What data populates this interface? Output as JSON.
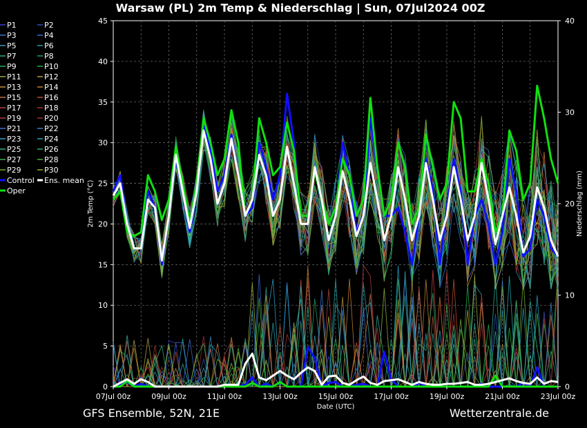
{
  "chart_data": {
    "type": "line",
    "title": "Warsaw  (PL)  2m Temp & Niederschlag | Sun, 07Jul2024 00Z",
    "ylabel_left": "2m Temp (°C)",
    "ylabel_right": "Niederschlag (mm)",
    "xlabel": "Date (UTC)",
    "ylim_left": [
      0,
      45
    ],
    "ylim_right": [
      0,
      40
    ],
    "y_ticks_left": [
      "0",
      "5",
      "10",
      "15",
      "20",
      "25",
      "30",
      "35",
      "40",
      "45"
    ],
    "y_ticks_right": [
      "0",
      "10",
      "20",
      "30",
      "40"
    ],
    "x_ticks": [
      "07Jul 00z",
      "09Jul 00z",
      "11Jul 00z",
      "13Jul 00z",
      "15Jul 00z",
      "17Jul 00z",
      "19Jul 00z",
      "21Jul 00z",
      "23Jul 00z"
    ],
    "x_days": [
      0,
      16
    ],
    "grid": true,
    "legend_position": "left",
    "legend": [
      {
        "name": "P1",
        "color": "#3b3bd6"
      },
      {
        "name": "P2",
        "color": "#2f4fb8"
      },
      {
        "name": "P3",
        "color": "#3a78c8"
      },
      {
        "name": "P4",
        "color": "#3a6ad0"
      },
      {
        "name": "P5",
        "color": "#2f9ab5"
      },
      {
        "name": "P6",
        "color": "#2aa0a8"
      },
      {
        "name": "P7",
        "color": "#2aa58a"
      },
      {
        "name": "P8",
        "color": "#20a070"
      },
      {
        "name": "P9",
        "color": "#25b050"
      },
      {
        "name": "P10",
        "color": "#20b040"
      },
      {
        "name": "P11",
        "color": "#8fb040"
      },
      {
        "name": "P12",
        "color": "#b0a040"
      },
      {
        "name": "P13",
        "color": "#c09030"
      },
      {
        "name": "P14",
        "color": "#c08030"
      },
      {
        "name": "P15",
        "color": "#c07040"
      },
      {
        "name": "P16",
        "color": "#c05030"
      },
      {
        "name": "P17",
        "color": "#c04040"
      },
      {
        "name": "P18",
        "color": "#b03030"
      },
      {
        "name": "P19",
        "color": "#b04040"
      },
      {
        "name": "P20",
        "color": "#a03030"
      },
      {
        "name": "P21",
        "color": "#3a70d0"
      },
      {
        "name": "P22",
        "color": "#3a80c0"
      },
      {
        "name": "P23",
        "color": "#2aa0c8"
      },
      {
        "name": "P24",
        "color": "#2aa8b0"
      },
      {
        "name": "P25",
        "color": "#30b090"
      },
      {
        "name": "P26",
        "color": "#30b070"
      },
      {
        "name": "P27",
        "color": "#40b050"
      },
      {
        "name": "P28",
        "color": "#50b040"
      },
      {
        "name": "P29",
        "color": "#70b030"
      },
      {
        "name": "P30",
        "color": "#a0b030"
      },
      {
        "name": "Control",
        "color": "#1010ff"
      },
      {
        "name": "Ens. mean",
        "color": "#ffffff"
      },
      {
        "name": "Oper",
        "color": "#10e010"
      }
    ],
    "series": [
      {
        "name": "Ens. mean",
        "axis": "temp",
        "color": "#ffffff",
        "x": [
          0,
          0.25,
          0.5,
          0.75,
          1,
          1.25,
          1.5,
          1.75,
          2,
          2.25,
          2.5,
          2.75,
          3,
          3.25,
          3.5,
          3.75,
          4,
          4.25,
          4.5,
          4.75,
          5,
          5.25,
          5.5,
          5.75,
          6,
          6.25,
          6.5,
          6.75,
          7,
          7.25,
          7.5,
          7.75,
          8,
          8.25,
          8.5,
          8.75,
          9,
          9.25,
          9.5,
          9.75,
          10,
          10.25,
          10.5,
          10.75,
          11,
          11.25,
          11.5,
          11.75,
          12,
          12.25,
          12.5,
          12.75,
          13,
          13.25,
          13.5,
          13.75,
          14,
          14.25,
          14.5,
          14.75,
          15,
          15.25,
          15.5,
          15.75,
          16
        ],
        "y": [
          23.5,
          25,
          20,
          17,
          17,
          23,
          22,
          15.5,
          21,
          28.5,
          24,
          19.5,
          24,
          31.5,
          28,
          22.5,
          25,
          30.5,
          26,
          21,
          23,
          28.5,
          26,
          21,
          23,
          29.5,
          25,
          20,
          20,
          27,
          23,
          18,
          21,
          26.5,
          23,
          18.5,
          21,
          27.5,
          23,
          18,
          21,
          27,
          23,
          18,
          21,
          27.5,
          23,
          18,
          21,
          27,
          23,
          18,
          21,
          27.5,
          23,
          17.5,
          21,
          24.5,
          21,
          16.5,
          18.5,
          24.5,
          22,
          18,
          16
        ]
      },
      {
        "name": "Oper",
        "axis": "temp",
        "color": "#10e010",
        "x": [
          0,
          0.25,
          0.5,
          0.75,
          1,
          1.25,
          1.5,
          1.75,
          2,
          2.25,
          2.5,
          2.75,
          3,
          3.25,
          3.5,
          3.75,
          4,
          4.25,
          4.5,
          4.75,
          5,
          5.25,
          5.5,
          5.75,
          6,
          6.25,
          6.5,
          6.75,
          7,
          7.25,
          7.5,
          7.75,
          8,
          8.25,
          8.5,
          8.75,
          9,
          9.25,
          9.5,
          9.75,
          10,
          10.25,
          10.5,
          10.75,
          11,
          11.25,
          11.5,
          11.75,
          12,
          12.25,
          12.5,
          12.75,
          13,
          13.25,
          13.5,
          13.75,
          14,
          14.25,
          14.5,
          14.75,
          15,
          15.25,
          15.5,
          15.75,
          16
        ],
        "y": [
          23,
          24,
          19,
          18.5,
          19,
          26,
          24,
          20.5,
          23,
          29.5,
          25,
          20,
          25,
          33,
          30,
          26,
          28,
          34,
          30,
          21,
          23,
          33,
          30,
          26,
          27,
          32.5,
          29,
          21,
          21,
          26.5,
          23,
          20,
          22,
          28,
          26,
          21,
          23,
          35.5,
          27,
          21,
          23,
          30,
          27,
          20,
          22,
          31,
          27,
          23,
          25,
          35,
          33,
          24,
          24,
          28,
          25,
          19,
          21,
          31.5,
          29,
          23,
          25,
          37,
          33,
          28,
          25
        ]
      },
      {
        "name": "Control",
        "axis": "temp",
        "color": "#1010ff",
        "x": [
          0,
          0.25,
          0.5,
          0.75,
          1,
          1.25,
          1.5,
          1.75,
          2,
          2.25,
          2.5,
          2.75,
          3,
          3.25,
          3.5,
          3.75,
          4,
          4.25,
          4.5,
          4.75,
          5,
          5.25,
          5.5,
          5.75,
          6,
          6.25,
          6.5,
          6.75,
          7,
          7.25,
          7.5,
          7.75,
          8,
          8.25,
          8.5,
          8.75,
          9,
          9.25,
          9.5,
          9.75,
          10,
          10.25,
          10.5,
          10.75,
          11,
          11.25,
          11.5,
          11.75,
          12,
          12.25,
          12.5,
          12.75,
          13,
          13.25,
          13.5,
          13.75,
          14,
          14.25,
          14.5,
          14.75,
          15,
          15.25,
          15.5,
          15.75,
          16
        ],
        "y": [
          24,
          26,
          20,
          17,
          17,
          24,
          22,
          15,
          21,
          28,
          24,
          19,
          24,
          32,
          29,
          24,
          26,
          31,
          26,
          21,
          22,
          30,
          27,
          23,
          26,
          36,
          30,
          20,
          20,
          27,
          23,
          18,
          21,
          30,
          26,
          19,
          21,
          33,
          27,
          21,
          21,
          22,
          19,
          15,
          21,
          28,
          24,
          15,
          22,
          28,
          24,
          15,
          21,
          23,
          20,
          15,
          19,
          28,
          24,
          16,
          17,
          23,
          21,
          17,
          16
        ]
      },
      {
        "name": "Ens. mean",
        "axis": "precip",
        "color": "#ffffff",
        "x": [
          0,
          0.25,
          0.5,
          0.75,
          1,
          1.25,
          1.5,
          1.75,
          2,
          2.25,
          2.5,
          2.75,
          3,
          3.25,
          3.5,
          3.75,
          4,
          4.25,
          4.5,
          4.75,
          5,
          5.25,
          5.5,
          5.75,
          6,
          6.25,
          6.5,
          6.75,
          7,
          7.25,
          7.5,
          7.75,
          8,
          8.25,
          8.5,
          8.75,
          9,
          9.25,
          9.5,
          9.75,
          10,
          10.25,
          10.5,
          10.75,
          11,
          11.25,
          11.5,
          11.75,
          12,
          12.25,
          12.5,
          12.75,
          13,
          13.25,
          13.5,
          13.75,
          14,
          14.25,
          14.5,
          14.75,
          15,
          15.25,
          15.5,
          15.75,
          16
        ],
        "y": [
          0,
          0.4,
          0.8,
          0.3,
          0.8,
          0.5,
          0,
          0,
          0,
          0,
          0,
          0,
          0,
          0,
          0,
          0,
          0.2,
          0.2,
          0.2,
          2.5,
          3.6,
          1,
          0.7,
          1.2,
          1.7,
          1.2,
          0.8,
          1.5,
          2.1,
          1.7,
          0.2,
          1.1,
          1.2,
          0.4,
          0.2,
          0.7,
          1.1,
          0.4,
          0.2,
          0.6,
          0.7,
          0.8,
          0.5,
          0.2,
          0.5,
          0.3,
          0.2,
          0.2,
          0.3,
          0.3,
          0.4,
          0.5,
          0.2,
          0.2,
          0.3,
          0.5,
          0.7,
          0.9,
          0.6,
          0.4,
          0.3,
          1,
          0.3,
          0.6,
          0.5
        ]
      },
      {
        "name": "Oper",
        "axis": "precip",
        "color": "#10e010",
        "x": [
          0,
          0.25,
          0.5,
          0.75,
          1,
          1.25,
          1.5,
          1.75,
          2,
          2.25,
          2.5,
          2.75,
          3,
          3.25,
          3.5,
          3.75,
          4,
          4.25,
          4.5,
          4.75,
          5,
          5.25,
          5.5,
          5.75,
          6,
          6.25,
          6.5,
          6.75,
          7,
          7.25,
          7.5,
          7.75,
          8,
          8.25,
          8.5,
          8.75,
          9,
          9.25,
          9.5,
          9.75,
          10,
          10.25,
          10.5,
          10.75,
          11,
          11.25,
          11.5,
          11.75,
          12,
          12.25,
          12.5,
          12.75,
          13,
          13.25,
          13.5,
          13.75,
          14,
          14.25,
          14.5,
          14.75,
          15,
          15.25,
          15.5,
          15.75,
          16
        ],
        "y": [
          0,
          0,
          0.6,
          0,
          0,
          0,
          0,
          0,
          0,
          0,
          0,
          0,
          0,
          0,
          0,
          0,
          0,
          0,
          0,
          0,
          0.4,
          0,
          0,
          0,
          0.5,
          0,
          0,
          0,
          0,
          0,
          0,
          0,
          0,
          0,
          0,
          0,
          0,
          0,
          0,
          0,
          0,
          0,
          0,
          0,
          0,
          0,
          0,
          0,
          0,
          0,
          0,
          0,
          0,
          0,
          0,
          1.2,
          0,
          0,
          0,
          0,
          0,
          0,
          0,
          0,
          0
        ]
      },
      {
        "name": "Control",
        "axis": "precip",
        "color": "#1010ff",
        "x": [
          0,
          0.25,
          0.5,
          0.75,
          1,
          1.25,
          1.5,
          1.75,
          2,
          2.25,
          2.5,
          2.75,
          3,
          3.25,
          3.5,
          3.75,
          4,
          4.25,
          4.5,
          4.75,
          5,
          5.25,
          5.5,
          5.75,
          6,
          6.25,
          6.5,
          6.75,
          7,
          7.25,
          7.5,
          7.75,
          8,
          8.25,
          8.5,
          8.75,
          9,
          9.25,
          9.5,
          9.75,
          10,
          10.25,
          10.5,
          10.75,
          11,
          11.25,
          11.5,
          11.75,
          12,
          12.25,
          12.5,
          12.75,
          13,
          13.25,
          13.5,
          13.75,
          14,
          14.25,
          14.5,
          14.75,
          15,
          15.25,
          15.5,
          15.75,
          16
        ],
        "y": [
          0,
          0.3,
          0.5,
          0,
          0.3,
          0,
          0,
          0,
          0,
          0,
          0,
          0,
          0,
          0,
          0,
          0,
          0,
          0,
          0,
          0.2,
          1,
          0,
          0.3,
          0,
          0.5,
          0,
          0,
          0,
          4.3,
          3.1,
          0,
          0.4,
          0.5,
          0,
          0,
          0.2,
          0.3,
          0,
          0,
          3.8,
          0.8,
          0,
          0,
          0,
          0.4,
          0,
          0,
          0,
          0,
          0,
          0,
          0,
          0,
          0.3,
          0,
          0,
          0,
          0,
          0,
          0.4,
          0,
          2.1,
          0,
          0,
          0
        ]
      }
    ],
    "footer_left": "GFS Ensemble, 52N, 21E",
    "footer_right": "Wetterzentrale.de"
  }
}
